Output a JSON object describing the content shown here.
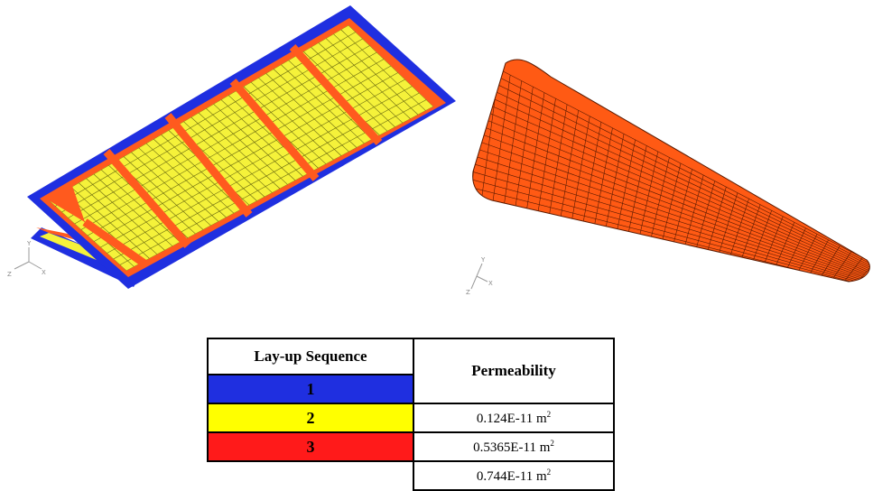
{
  "table": {
    "header_sequence": "Lay-up Sequence",
    "header_permeability": "Permeability",
    "rows": [
      {
        "label": "1",
        "color": "#1f2fe0",
        "value": "0.124E-11 m",
        "unit_exp": "2"
      },
      {
        "label": "2",
        "color": "#ffff00",
        "value": "0.5365E-11 m",
        "unit_exp": "2"
      },
      {
        "label": "3",
        "color": "#ff1a1a",
        "value": "0.744E-11 m",
        "unit_exp": "2"
      }
    ]
  },
  "colors": {
    "ply_blue": "#1f2fe0",
    "ply_yellow": "#f5f23a",
    "ply_orange": "#ff5a1e",
    "mesh_line": "#4a4a10",
    "foam_orange": "#ff5a14"
  },
  "icons": [
    "triad-axis-icon",
    "triad-axis-icon"
  ]
}
